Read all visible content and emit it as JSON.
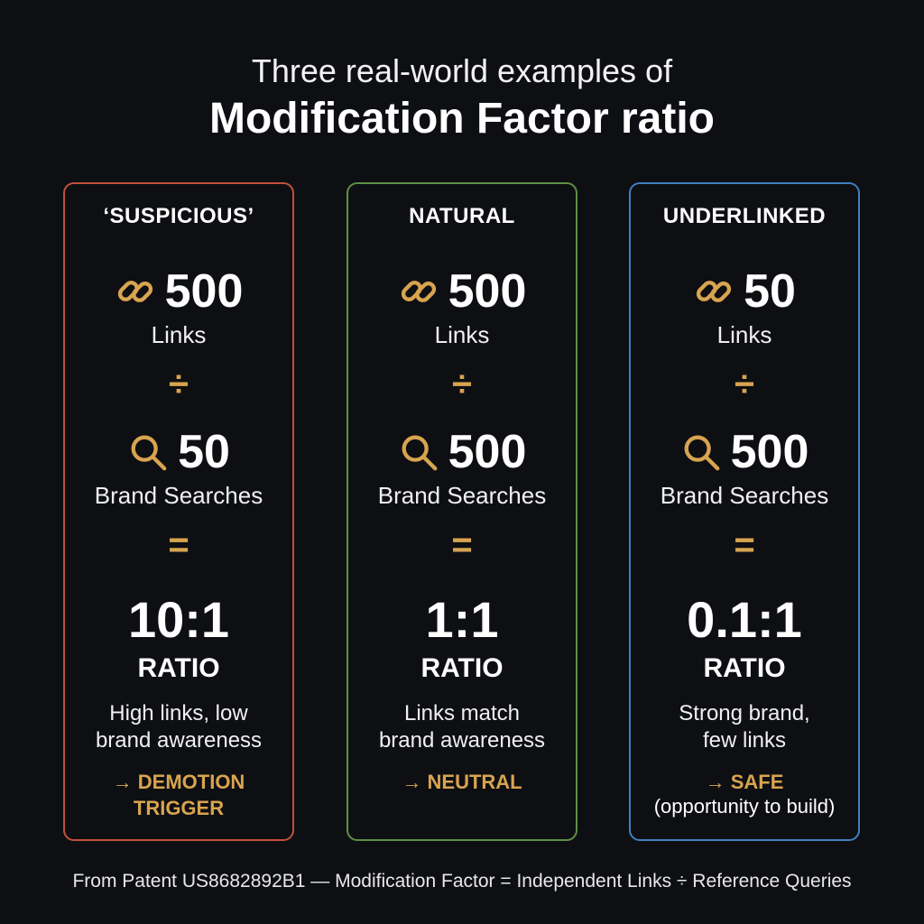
{
  "title": {
    "line1": "Three real-world examples of",
    "line2": "Modification Factor ratio"
  },
  "accent_color": "#d8a44f",
  "cards": [
    {
      "heading": "‘SUSPICIOUS’",
      "border_color": "#c2503a",
      "links_value": "500",
      "links_label": "Links",
      "divide_symbol": "÷",
      "searches_value": "50",
      "searches_label": "Brand Searches",
      "equals_symbol": "=",
      "ratio": "10:1",
      "ratio_word": "RATIO",
      "description_line1": "High links, low",
      "description_line2": "brand awareness",
      "verdict_line1": "→ DEMOTION",
      "verdict_line2": "TRIGGER"
    },
    {
      "heading": "NATURAL",
      "border_color": "#5e8f45",
      "links_value": "500",
      "links_label": "Links",
      "divide_symbol": "÷",
      "searches_value": "500",
      "searches_label": "Brand Searches",
      "equals_symbol": "=",
      "ratio": "1:1",
      "ratio_word": "RATIO",
      "description_line1": "Links match",
      "description_line2": "brand awareness",
      "verdict_line1": "→ NEUTRAL"
    },
    {
      "heading": "UNDERLINKED",
      "border_color": "#3f7fc0",
      "links_value": "50",
      "links_label": "Links",
      "divide_symbol": "÷",
      "searches_value": "500",
      "searches_label": "Brand Searches",
      "equals_symbol": "=",
      "ratio": "0.1:1",
      "ratio_word": "RATIO",
      "description_line1": "Strong brand,",
      "description_line2": "few links",
      "verdict_line1": "→ SAFE",
      "verdict_note": "(opportunity to build)"
    }
  ],
  "icons": {
    "links": "link-icon",
    "searches": "search-icon"
  },
  "footer": "From Patent US8682892B1 — Modification Factor = Independent Links ÷ Reference Queries"
}
